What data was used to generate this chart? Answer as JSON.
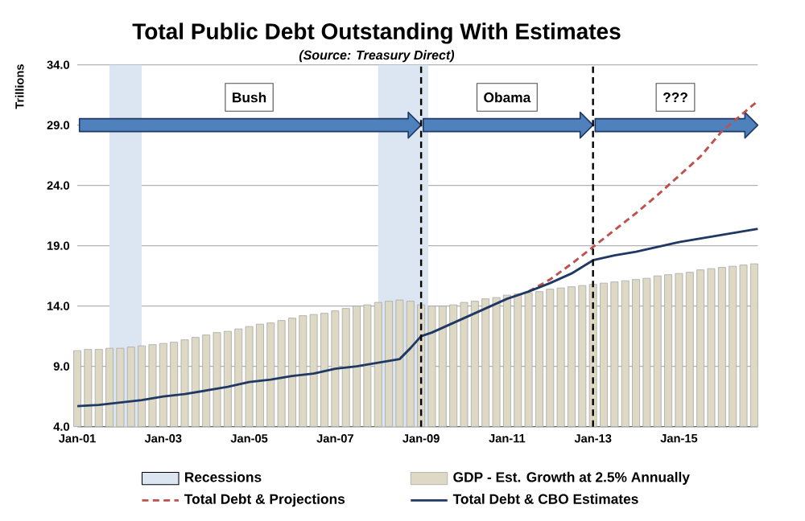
{
  "chart_data": {
    "type": "line",
    "title": "Total Public Debt Outstanding With Estimates",
    "subtitle": "(Source:  Treasury Direct)",
    "ylabel": "Trillions",
    "xlim": [
      "2001-01",
      "2016-11"
    ],
    "ylim": [
      4,
      34
    ],
    "xticks": [
      {
        "value": "2001-01",
        "label": "Jan-01"
      },
      {
        "value": "2003-01",
        "label": "Jan-03"
      },
      {
        "value": "2005-01",
        "label": "Jan-05"
      },
      {
        "value": "2007-01",
        "label": "Jan-07"
      },
      {
        "value": "2009-01",
        "label": "Jan-09"
      },
      {
        "value": "2011-01",
        "label": "Jan-11"
      },
      {
        "value": "2013-01",
        "label": "Jan-13"
      },
      {
        "value": "2015-01",
        "label": "Jan-15"
      }
    ],
    "yticks": [
      {
        "value": 4,
        "label": "4.0"
      },
      {
        "value": 9,
        "label": "9.0"
      },
      {
        "value": 14,
        "label": "14.0"
      },
      {
        "value": 19,
        "label": "19.0"
      },
      {
        "value": 24,
        "label": "24.0"
      },
      {
        "value": 29,
        "label": "29.0"
      },
      {
        "value": 34,
        "label": "34.0"
      }
    ],
    "grid": "y",
    "legend": "bottom",
    "bands": [
      {
        "axis": "x",
        "from": "2001-10",
        "to": "2002-07",
        "label": "Recessions",
        "color": "#dce6f2"
      },
      {
        "axis": "x",
        "from": "2008-01",
        "to": "2009-03",
        "color": "#dce6f2"
      }
    ],
    "ref_lines": [
      {
        "axis": "x",
        "value": "2009-01",
        "color": "#000000",
        "line_style": "dashed"
      },
      {
        "axis": "x",
        "value": "2013-01",
        "color": "#000000",
        "line_style": "dashed"
      }
    ],
    "annotations": [
      "Bush",
      "Obama",
      "???"
    ],
    "series": [
      {
        "type": "bar",
        "name": "GDP - Est. Growth at 2.5% Annually",
        "color": "#ddd9c4",
        "x": [
          "2001-01",
          "2001-04",
          "2001-07",
          "2001-10",
          "2002-01",
          "2002-04",
          "2002-07",
          "2002-10",
          "2003-01",
          "2003-04",
          "2003-07",
          "2003-10",
          "2004-01",
          "2004-04",
          "2004-07",
          "2004-10",
          "2005-01",
          "2005-04",
          "2005-07",
          "2005-10",
          "2006-01",
          "2006-04",
          "2006-07",
          "2006-10",
          "2007-01",
          "2007-04",
          "2007-07",
          "2007-10",
          "2008-01",
          "2008-04",
          "2008-07",
          "2008-10",
          "2009-01",
          "2009-04",
          "2009-07",
          "2009-10",
          "2010-01",
          "2010-04",
          "2010-07",
          "2010-10",
          "2011-01",
          "2011-04",
          "2011-07",
          "2011-10",
          "2012-01",
          "2012-04",
          "2012-07",
          "2012-10",
          "2013-01",
          "2013-04",
          "2013-07",
          "2013-10",
          "2014-01",
          "2014-04",
          "2014-07",
          "2014-10",
          "2015-01",
          "2015-04",
          "2015-07",
          "2015-10",
          "2016-01",
          "2016-04",
          "2016-07",
          "2016-10"
        ],
        "values": [
          10.3,
          10.4,
          10.4,
          10.5,
          10.5,
          10.6,
          10.7,
          10.8,
          10.9,
          11.0,
          11.2,
          11.4,
          11.6,
          11.8,
          11.9,
          12.1,
          12.3,
          12.5,
          12.6,
          12.8,
          13.0,
          13.2,
          13.3,
          13.4,
          13.6,
          13.8,
          14.0,
          14.1,
          14.3,
          14.4,
          14.5,
          14.4,
          14.1,
          14.0,
          14.0,
          14.1,
          14.3,
          14.4,
          14.6,
          14.7,
          14.9,
          15.0,
          15.1,
          15.2,
          15.4,
          15.5,
          15.6,
          15.7,
          15.8,
          15.9,
          16.0,
          16.1,
          16.2,
          16.3,
          16.5,
          16.6,
          16.7,
          16.8,
          17.0,
          17.1,
          17.2,
          17.3,
          17.4,
          17.5
        ]
      },
      {
        "name": "Total Debt & Projections",
        "color": "#c0504d",
        "line_style": "dashed",
        "x": [
          "2011-07",
          "2012-01",
          "2012-07",
          "2013-01",
          "2013-07",
          "2014-01",
          "2014-07",
          "2015-01",
          "2015-07",
          "2016-01",
          "2016-07",
          "2016-11"
        ],
        "values": [
          15.2,
          16.2,
          17.5,
          18.9,
          20.3,
          21.7,
          23.2,
          24.8,
          26.4,
          28.5,
          30.0,
          31.0
        ]
      },
      {
        "name": "Total Debt & CBO Estimates",
        "color": "#1f3864",
        "line_style": "solid",
        "x": [
          "2001-01",
          "2001-07",
          "2002-01",
          "2002-07",
          "2003-01",
          "2003-07",
          "2004-01",
          "2004-07",
          "2005-01",
          "2005-07",
          "2006-01",
          "2006-07",
          "2007-01",
          "2007-07",
          "2008-01",
          "2008-07",
          "2008-10",
          "2009-01",
          "2009-04",
          "2009-10",
          "2010-01",
          "2010-07",
          "2011-01",
          "2011-07",
          "2012-01",
          "2012-07",
          "2013-01",
          "2013-07",
          "2014-01",
          "2014-07",
          "2015-01",
          "2015-07",
          "2016-01",
          "2016-07",
          "2016-11"
        ],
        "values": [
          5.7,
          5.8,
          6.0,
          6.2,
          6.5,
          6.7,
          7.0,
          7.3,
          7.7,
          7.9,
          8.2,
          8.4,
          8.8,
          9.0,
          9.3,
          9.6,
          10.5,
          11.5,
          11.8,
          12.6,
          13.0,
          13.8,
          14.6,
          15.2,
          15.9,
          16.7,
          17.8,
          18.2,
          18.5,
          18.9,
          19.3,
          19.6,
          19.9,
          20.2,
          20.4
        ]
      }
    ]
  }
}
